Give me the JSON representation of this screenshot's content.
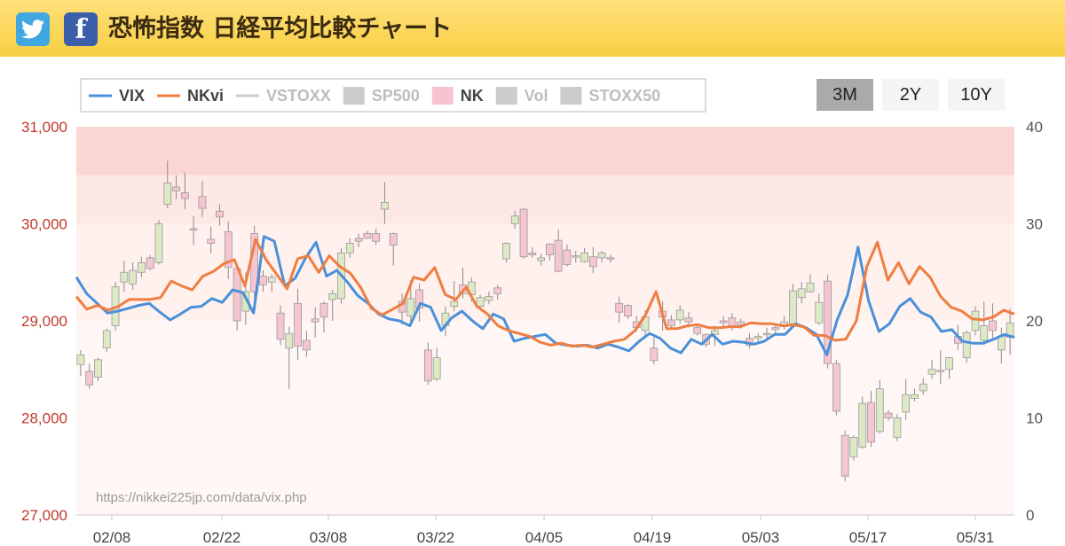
{
  "header": {
    "twitter_icon": "twitter-bird-icon",
    "facebook_icon": "facebook-f-icon",
    "title": "恐怖指数 日経平均比較チャート"
  },
  "period_buttons": [
    {
      "label": "3M",
      "active": true
    },
    {
      "label": "2Y",
      "active": false
    },
    {
      "label": "10Y",
      "active": false
    }
  ],
  "legend": [
    {
      "label": "VIX",
      "kind": "line",
      "color": "#4a90d9",
      "active": true
    },
    {
      "label": "NKvi",
      "kind": "line",
      "color": "#f07d42",
      "active": true
    },
    {
      "label": "VSTOXX",
      "kind": "line",
      "color": "#cccccc",
      "active": false
    },
    {
      "label": "SP500",
      "kind": "box",
      "color": "#cccccc",
      "active": false
    },
    {
      "label": "NK",
      "kind": "box",
      "color": "#f6c4cf",
      "active": true
    },
    {
      "label": "Vol",
      "kind": "box",
      "color": "#cccccc",
      "active": false
    },
    {
      "label": "STOXX50",
      "kind": "box",
      "color": "#cccccc",
      "active": false
    }
  ],
  "watermark": "https://nikkei225jp.com/data/vix.php",
  "colors": {
    "vix": "#4a90d9",
    "nkvi": "#f07d42",
    "candle_up": "#dde8c4",
    "candle_down": "#f5c6d2",
    "left_axis_text": "#c0392b",
    "right_axis_text": "#555555"
  },
  "chart_data": {
    "type": "line+candlestick",
    "x_ticks": [
      "02/08",
      "02/22",
      "03/08",
      "03/22",
      "04/05",
      "04/19",
      "05/03",
      "05/17",
      "05/31"
    ],
    "y_left": {
      "ticks": [
        "27,000",
        "28,000",
        "29,000",
        "30,000",
        "31,000"
      ],
      "range": [
        27000,
        31000
      ]
    },
    "y_right": {
      "ticks": [
        "0",
        "10",
        "20",
        "30",
        "40"
      ],
      "range": [
        0,
        40
      ]
    },
    "bands": [
      {
        "from": 35,
        "to": 40,
        "color": "#fad6d3"
      },
      {
        "from": 30,
        "to": 35,
        "color": "#fde8e5"
      },
      {
        "from": 20,
        "to": 30,
        "color": "#fff1ee"
      },
      {
        "from": 0,
        "to": 20,
        "color": "#fff7f5"
      }
    ],
    "series": [
      {
        "name": "VIX",
        "axis": "right",
        "values": [
          24.5,
          22.8,
          21.8,
          20.8,
          21.0,
          21.3,
          21.6,
          21.8,
          20.9,
          20.1,
          20.7,
          21.4,
          21.5,
          22.3,
          21.9,
          23.2,
          22.9,
          20.8,
          28.7,
          28.2,
          23.6,
          24.4,
          26.5,
          28.1,
          24.6,
          25.2,
          24.0,
          22.6,
          21.8,
          20.7,
          20.2,
          20.0,
          19.5,
          21.8,
          21.4,
          19.0,
          20.3,
          21.0,
          20.0,
          19.2,
          20.7,
          20.2,
          17.9,
          18.2,
          18.4,
          18.6,
          17.7,
          17.5,
          17.4,
          17.5,
          17.2,
          17.6,
          17.3,
          16.9,
          17.9,
          18.7,
          18.2,
          17.2,
          16.7,
          18.1,
          17.6,
          18.6,
          17.6,
          17.9,
          17.8,
          17.6,
          17.9,
          18.6,
          18.6,
          19.7,
          19.3,
          18.6,
          16.5,
          20.1,
          22.7,
          27.6,
          22.1,
          18.9,
          19.7,
          21.5,
          22.3,
          20.9,
          20.4,
          18.9,
          19.1,
          17.9,
          17.7,
          17.7,
          18.1,
          18.6,
          18.3
        ]
      },
      {
        "name": "NKvi",
        "axis": "right",
        "values": [
          22.5,
          21.2,
          21.6,
          21.1,
          21.5,
          22.2,
          22.2,
          22.2,
          22.4,
          24.1,
          23.6,
          23.2,
          24.6,
          25.1,
          25.9,
          26.3,
          23.6,
          28.4,
          26.3,
          24.8,
          23.3,
          26.4,
          26.7,
          25.0,
          26.7,
          25.6,
          24.9,
          23.4,
          21.3,
          20.6,
          21.2,
          21.8,
          24.5,
          24.2,
          25.5,
          22.7,
          22.2,
          23.5,
          21.5,
          20.7,
          19.5,
          19.0,
          18.7,
          18.4,
          17.8,
          17.5,
          17.7,
          17.4,
          17.5,
          17.3,
          17.6,
          17.9,
          18.1,
          19.0,
          20.6,
          23.0,
          19.2,
          19.2,
          19.5,
          19.6,
          19.3,
          19.3,
          19.4,
          19.4,
          19.8,
          19.7,
          19.7,
          19.5,
          19.6,
          19.4,
          18.5,
          18.5,
          18.0,
          18.1,
          20.0,
          25.6,
          28.1,
          24.2,
          26.0,
          23.8,
          25.6,
          24.5,
          22.5,
          21.4,
          21.0,
          20.2,
          20.1,
          20.4,
          21.1,
          20.7
        ]
      }
    ],
    "candles_NK": [
      [
        28550,
        28650,
        28430,
        28700
      ],
      [
        28480,
        28340,
        28300,
        28560
      ],
      [
        28420,
        28600,
        28380,
        28620
      ],
      [
        28720,
        28900,
        28680,
        28920
      ],
      [
        28950,
        29350,
        28900,
        29400
      ],
      [
        29400,
        29500,
        29300,
        29620
      ],
      [
        29380,
        29520,
        29320,
        29600
      ],
      [
        29500,
        29600,
        29450,
        29660
      ],
      [
        29650,
        29540,
        29520,
        29680
      ],
      [
        29600,
        30000,
        29580,
        30040
      ],
      [
        30200,
        30420,
        30160,
        30650
      ],
      [
        30380,
        30340,
        30250,
        30500
      ],
      [
        30320,
        30260,
        30150,
        30530
      ],
      [
        29950,
        29940,
        29780,
        30080
      ],
      [
        30280,
        30160,
        30070,
        30440
      ],
      [
        29840,
        29800,
        29700,
        29970
      ],
      [
        30130,
        30070,
        29980,
        30200
      ],
      [
        29920,
        29550,
        29430,
        30020
      ],
      [
        29540,
        29000,
        28900,
        29580
      ],
      [
        29100,
        29300,
        28960,
        29500
      ],
      [
        29900,
        29300,
        29240,
        29980
      ],
      [
        29460,
        29370,
        29300,
        29520
      ],
      [
        29400,
        29450,
        29300,
        29480
      ],
      [
        29080,
        28810,
        28750,
        29160
      ],
      [
        28720,
        28870,
        28300,
        28940
      ],
      [
        29180,
        28740,
        28600,
        29330
      ],
      [
        28800,
        28700,
        28630,
        28900
      ],
      [
        29020,
        28990,
        28830,
        29140
      ],
      [
        29180,
        29040,
        28880,
        29200
      ],
      [
        29220,
        29280,
        29000,
        29320
      ],
      [
        29230,
        29700,
        29180,
        29750
      ],
      [
        29700,
        29800,
        29650,
        29850
      ],
      [
        29850,
        29820,
        29760,
        29900
      ],
      [
        29900,
        29850,
        29850,
        29930
      ],
      [
        29900,
        29820,
        29780,
        29950
      ],
      [
        30150,
        30220,
        30000,
        30430
      ],
      [
        29900,
        29780,
        29570,
        29910
      ],
      [
        29200,
        29090,
        28960,
        29280
      ],
      [
        29050,
        29230,
        28970,
        29420
      ],
      [
        29320,
        29130,
        28990,
        29380
      ],
      [
        28700,
        28380,
        28340,
        28780
      ],
      [
        28400,
        28620,
        28380,
        28720
      ],
      [
        28950,
        29080,
        28840,
        29150
      ],
      [
        29150,
        29200,
        29100,
        29410
      ],
      [
        29370,
        29280,
        29230,
        29550
      ],
      [
        29270,
        29400,
        29200,
        29450
      ],
      [
        29150,
        29240,
        29120,
        29270
      ],
      [
        29210,
        29250,
        29170,
        29300
      ],
      [
        29340,
        29280,
        29220,
        29370
      ],
      [
        29640,
        29800,
        29600,
        29810
      ],
      [
        30000,
        30080,
        29950,
        30130
      ],
      [
        30150,
        29660,
        29640,
        30160
      ],
      [
        29700,
        29680,
        29650,
        29760
      ],
      [
        29620,
        29650,
        29570,
        29690
      ],
      [
        29790,
        29680,
        29620,
        29800
      ],
      [
        29830,
        29510,
        29500,
        29940
      ],
      [
        29730,
        29580,
        29560,
        29790
      ],
      [
        29660,
        29670,
        29600,
        29720
      ],
      [
        29610,
        29700,
        29600,
        29750
      ],
      [
        29660,
        29560,
        29490,
        29760
      ],
      [
        29650,
        29700,
        29600,
        29720
      ],
      [
        29650,
        29640,
        29600,
        29680
      ],
      [
        29180,
        29090,
        28980,
        29250
      ],
      [
        29160,
        29050,
        29020,
        29170
      ],
      [
        28990,
        28930,
        28890,
        29050
      ],
      [
        28900,
        29040,
        28850,
        29110
      ],
      [
        28720,
        28590,
        28550,
        28830
      ],
      [
        29100,
        29040,
        28900,
        29200
      ],
      [
        29010,
        28950,
        28920,
        29060
      ],
      [
        29010,
        29110,
        28970,
        29160
      ],
      [
        29030,
        28990,
        28930,
        29090
      ],
      [
        28930,
        28870,
        28850,
        28960
      ],
      [
        28860,
        28760,
        28730,
        28870
      ],
      [
        28860,
        28900,
        28740,
        28950
      ],
      [
        29000,
        28980,
        28920,
        29050
      ],
      [
        29030,
        28950,
        28900,
        29080
      ],
      [
        28990,
        28960,
        28920,
        29020
      ],
      [
        28820,
        28750,
        28720,
        28870
      ],
      [
        28820,
        28840,
        28780,
        28870
      ],
      [
        28860,
        28870,
        28800,
        28930
      ],
      [
        28930,
        28910,
        28860,
        28970
      ],
      [
        28940,
        28990,
        28910,
        29050
      ],
      [
        28970,
        29310,
        28960,
        29380
      ],
      [
        29240,
        29330,
        29180,
        29400
      ],
      [
        29300,
        29390,
        29290,
        29480
      ],
      [
        28980,
        29190,
        28960,
        29280
      ],
      [
        29410,
        28560,
        28510,
        29480
      ],
      [
        28560,
        28070,
        28030,
        28600
      ],
      [
        27820,
        27400,
        27350,
        27870
      ],
      [
        27600,
        27800,
        27560,
        27820
      ],
      [
        27700,
        28150,
        27680,
        28220
      ],
      [
        28160,
        27750,
        27700,
        28280
      ],
      [
        27860,
        28300,
        27840,
        28390
      ],
      [
        28050,
        28000,
        27970,
        28080
      ],
      [
        27800,
        28000,
        27760,
        28040
      ],
      [
        28060,
        28240,
        27980,
        28400
      ],
      [
        28200,
        28240,
        28170,
        28300
      ],
      [
        28280,
        28350,
        28240,
        28410
      ],
      [
        28450,
        28500,
        28400,
        28600
      ],
      [
        28490,
        28480,
        28350,
        28700
      ],
      [
        28500,
        28620,
        28400,
        28630
      ],
      [
        28840,
        28770,
        28700,
        28960
      ],
      [
        28620,
        28880,
        28570,
        28900
      ],
      [
        28900,
        29100,
        28850,
        29150
      ],
      [
        28800,
        28950,
        28750,
        29200
      ],
      [
        29000,
        28900,
        28800,
        29180
      ],
      [
        28700,
        28840,
        28560,
        28930
      ],
      [
        28830,
        28980,
        28650,
        29130
      ]
    ]
  }
}
